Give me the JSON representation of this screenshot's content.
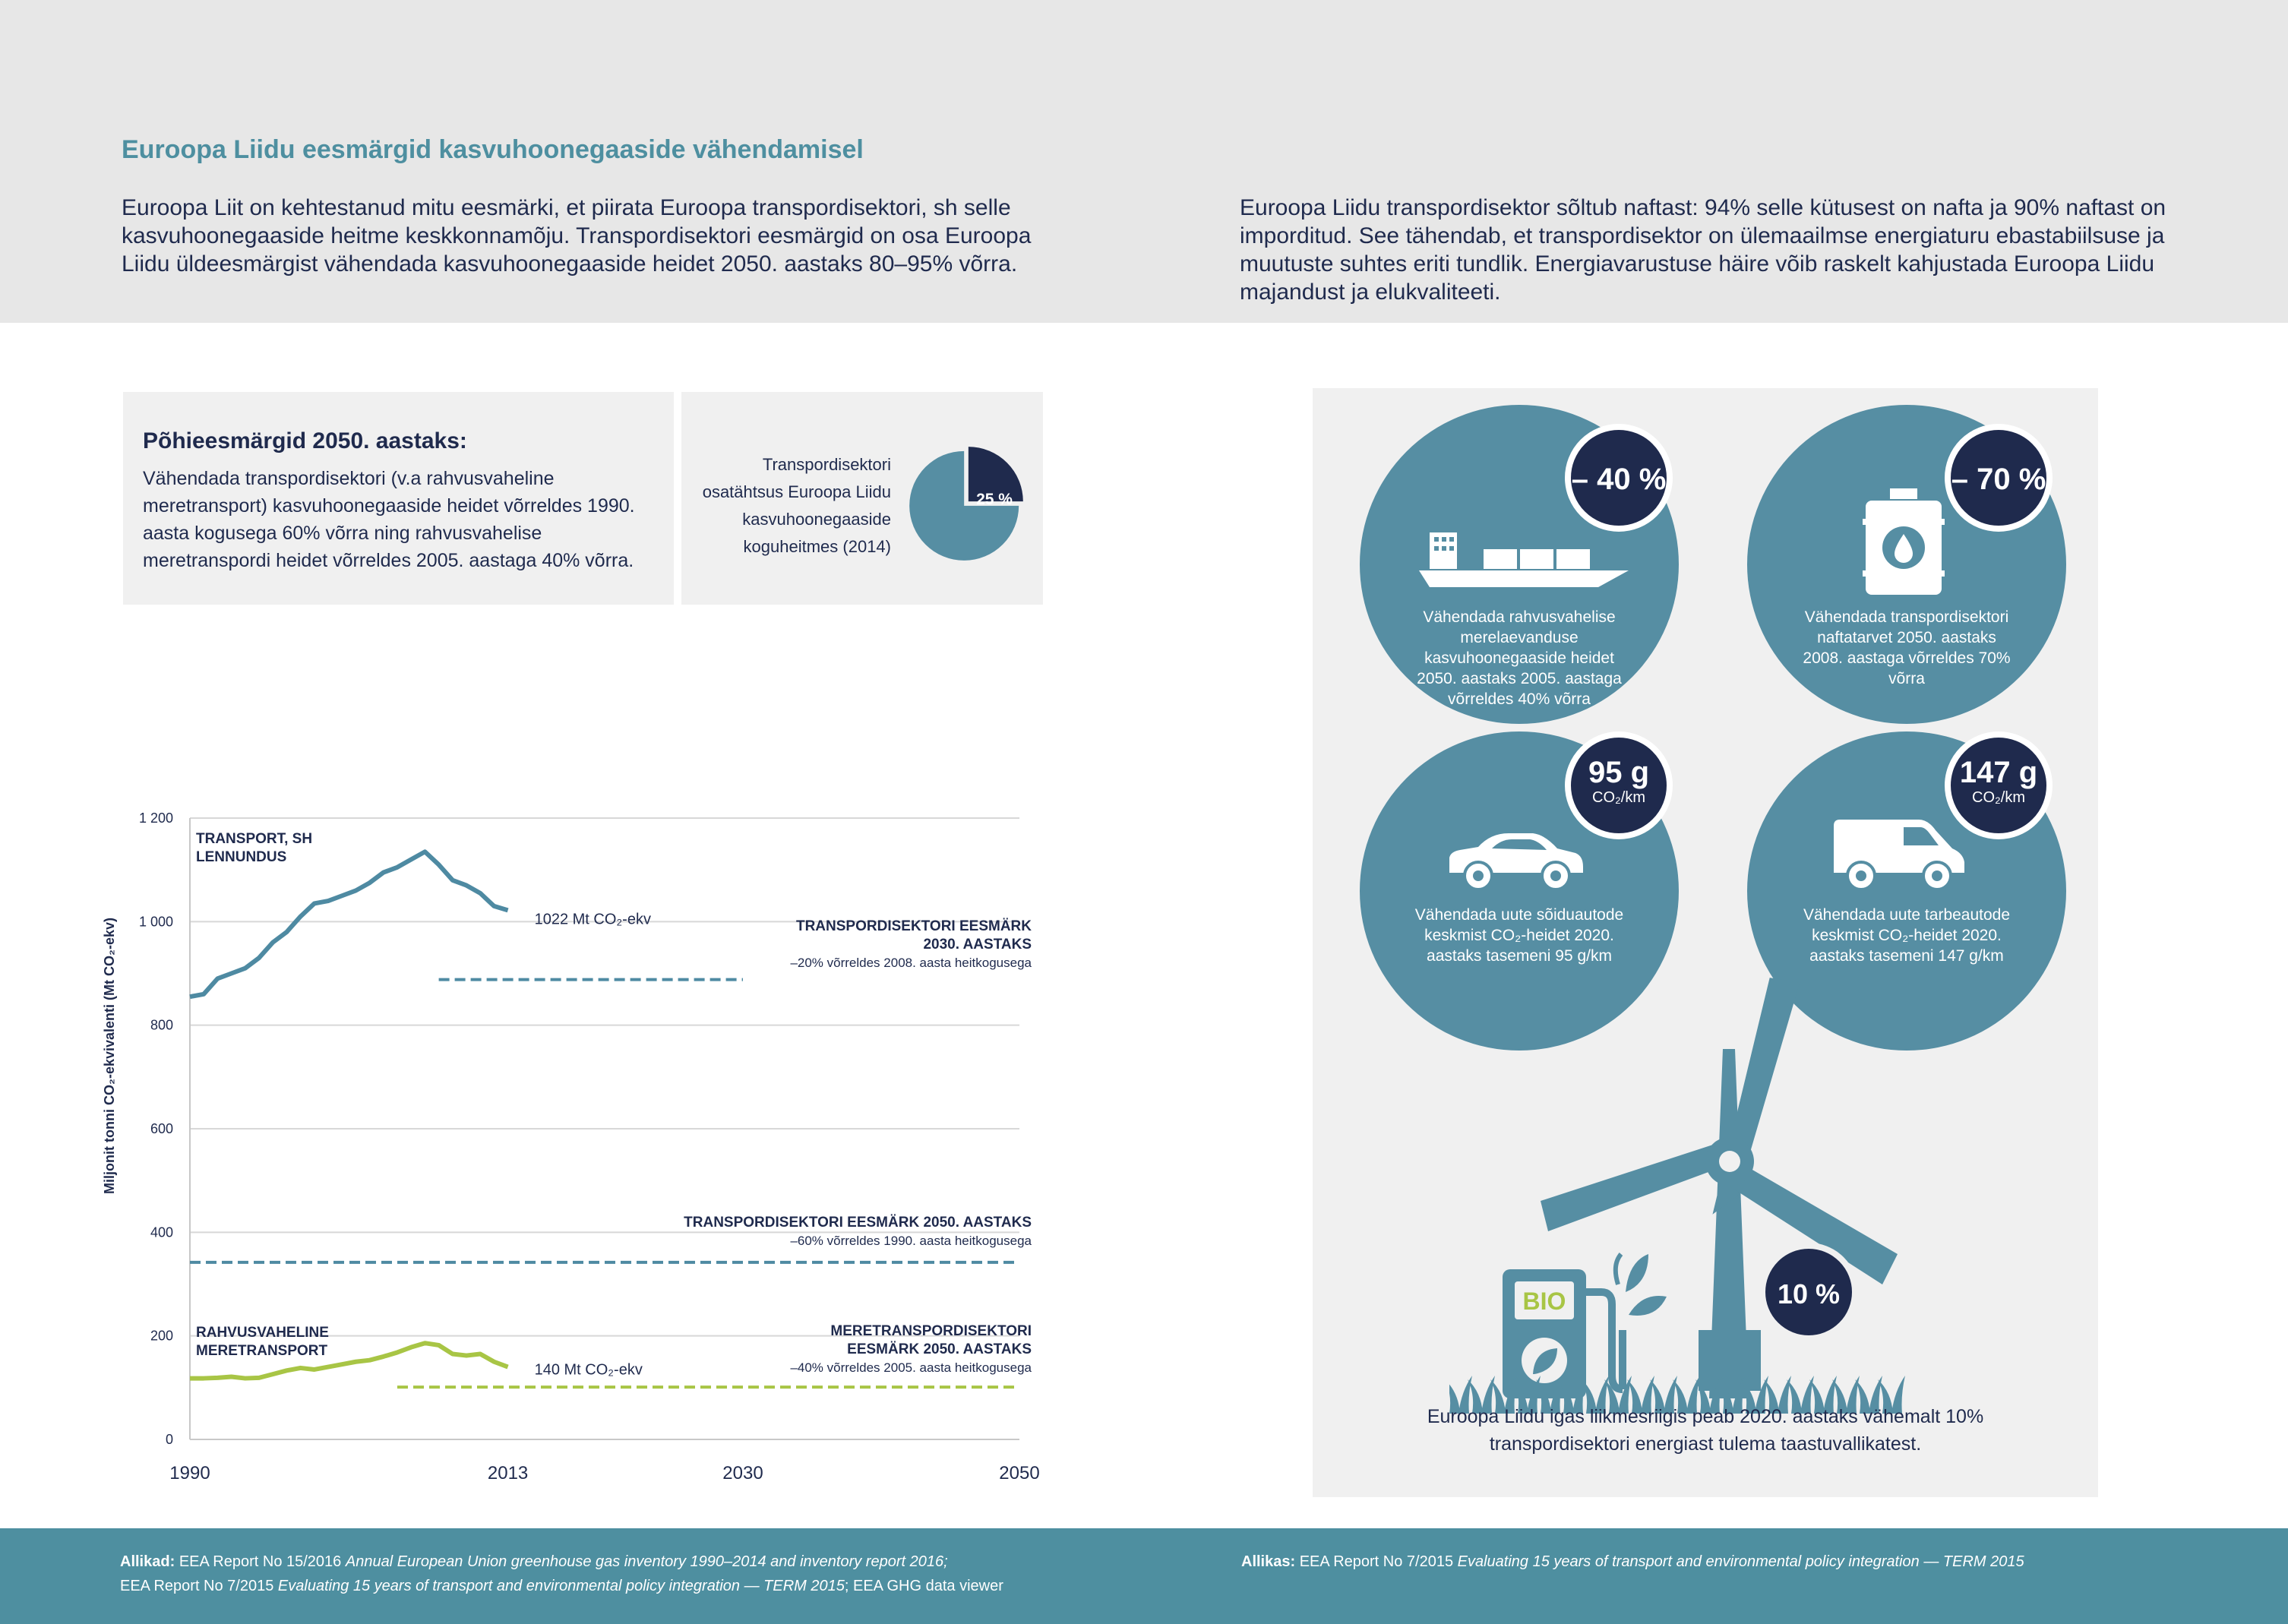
{
  "header": {
    "title": "Euroopa Liidu eesmärgid kasvuhoonegaaside vähendamisel",
    "intro_left": "Euroopa Liit on kehtestanud mitu eesmärki, et piirata Euroopa transpordisektori, sh selle kasvuhoonegaaside heitme keskkonnamõju. Transpordisektori eesmärgid on osa Euroopa Liidu üldeesmärgist vähendada kasvuhoonegaaside heidet 2050. aastaks 80–95% võrra.",
    "intro_right": "Euroopa Liidu transpordisektor sõltub naftast: 94% selle kütusest on nafta ja 90% naftast on imporditud. See tähendab, et transpordisektor on ülemaailmse energiaturu ebastabiilsuse ja muutuste suhtes eriti tundlik. Energiavarustuse häire võib raskelt kahjustada Euroopa Liidu majandust ja elukvaliteeti."
  },
  "goals": {
    "title": "Põhieesmärgid 2050. aastaks:",
    "text": "Vähendada transpordisektori (v.a rahvusvaheline meretransport) kasvuhoonegaaside heidet võrreldes 1990. aasta kogusega 60% võrra ning rahvusvahelise meretranspordi heidet võrreldes 2005. aastaga 40% võrra."
  },
  "share": {
    "text": "Transpordisektori osatähtsus Euroopa Liidu kasvuhoonegaaside koguheitmes (2014)",
    "value": 25,
    "label": "25 %"
  },
  "chart_data": {
    "type": "line",
    "ylabel": "Miljonit tonni CO₂-ekvivalenti (Mt CO₂-ekv)",
    "ylim": [
      0,
      1200
    ],
    "yticks": [
      0,
      200,
      400,
      600,
      800,
      1000,
      1200
    ],
    "ytick_labels": [
      "0",
      "200",
      "400",
      "600",
      "800",
      "1 000",
      "1 200"
    ],
    "xlim": [
      1990,
      2050
    ],
    "xticks": [
      1990,
      2013,
      2030,
      2050
    ],
    "grid": true,
    "series": [
      {
        "name": "TRANSPORT, SH LENNUNDUS",
        "color": "#4e8aa2",
        "x": [
          1990,
          1991,
          1992,
          1993,
          1994,
          1995,
          1996,
          1997,
          1998,
          1999,
          2000,
          2001,
          2002,
          2003,
          2004,
          2005,
          2006,
          2007,
          2008,
          2009,
          2010,
          2011,
          2012,
          2013
        ],
        "values": [
          855,
          860,
          890,
          900,
          910,
          930,
          960,
          980,
          1010,
          1035,
          1040,
          1050,
          1060,
          1075,
          1095,
          1105,
          1120,
          1135,
          1110,
          1080,
          1070,
          1055,
          1030,
          1022
        ],
        "end_label": "1022 Mt CO₂-ekv"
      },
      {
        "name": "RAHVUSVAHELINE MERETRANSPORT",
        "color": "#a8c545",
        "x": [
          1990,
          1991,
          1992,
          1993,
          1994,
          1995,
          1996,
          1997,
          1998,
          1999,
          2000,
          2001,
          2002,
          2003,
          2004,
          2005,
          2006,
          2007,
          2008,
          2009,
          2010,
          2011,
          2012,
          2013
        ],
        "values": [
          118,
          118,
          119,
          121,
          118,
          119,
          126,
          133,
          138,
          135,
          140,
          145,
          150,
          153,
          160,
          168,
          178,
          186,
          182,
          165,
          162,
          165,
          150,
          140
        ],
        "end_label": "140 Mt CO₂-ekv"
      }
    ],
    "targets": [
      {
        "title": "TRANSPORDISEKTORI EESMÄRK 2030. AASTAKS",
        "subtitle": "–20% võrreldes 2008. aasta heitkogusega",
        "x": [
          2008,
          2030
        ],
        "value": 888,
        "color": "#4e8aa2"
      },
      {
        "title": "TRANSPORDISEKTORI EESMÄRK 2050. AASTAKS",
        "subtitle": "–60% võrreldes 1990. aasta heitkogusega",
        "x": [
          1990,
          2050
        ],
        "value": 342,
        "color": "#4e8aa2"
      },
      {
        "title": "MERETRANSPORDISEKTORI EESMÄRK 2050. AASTAKS",
        "subtitle": "–40% võrreldes 2005. aasta heitkogusega",
        "x": [
          2005,
          2050
        ],
        "value": 101,
        "color": "#a8c545"
      }
    ]
  },
  "targets_panel": {
    "maritime": {
      "badge": "– 40 %",
      "text": "Vähendada rahvusvahelise merelaevanduse kasvuhoonegaaside heidet 2050. aastaks 2005. aastaga võrreldes 40% võrra"
    },
    "oil": {
      "badge": "– 70 %",
      "text": "Vähendada transpordisektori naftatarvet 2050. aastaks 2008. aastaga võrreldes 70% võrra"
    },
    "cars": {
      "badge": "95 g",
      "badge_unit": "CO₂/km",
      "text": "Vähendada uute sõiduautode keskmist CO₂-heidet 2020. aastaks tasemeni 95 g/km"
    },
    "vans": {
      "badge": "147 g",
      "badge_unit": "CO₂/km",
      "text": "Vähendada uute tarbeautode keskmist CO₂-heidet 2020. aastaks tasemeni 147 g/km"
    },
    "renewable": {
      "badge": "10 %",
      "bio_label": "BIO",
      "text": "Euroopa Liidu igas liikmesriigis peab 2020. aastaks vähemalt 10% transpordisektori energiast tulema taastuvallikatest."
    }
  },
  "colors": {
    "teal": "#568ea3",
    "navy": "#1f2a4d",
    "green": "#a8c545",
    "header_bg": "#e7e7e7",
    "footer_bg": "#4e8fa0"
  },
  "footer": {
    "left_label": "Allikad:",
    "left_line1_plain": "EEA Report No 15/2016 ",
    "left_line1_italic": "Annual European Union greenhouse gas inventory 1990–2014 and inventory report 2016;",
    "left_line2_plain": "EEA Report No 7/2015 ",
    "left_line2_italic": "Evaluating 15 years of transport and environmental policy integration — TERM 2015",
    "left_line2_tail": "; EEA GHG data viewer",
    "right_label": "Allikas:",
    "right_plain": "EEA Report No 7/2015 ",
    "right_italic": "Evaluating 15 years of transport and environmental policy integration — TERM 2015"
  }
}
